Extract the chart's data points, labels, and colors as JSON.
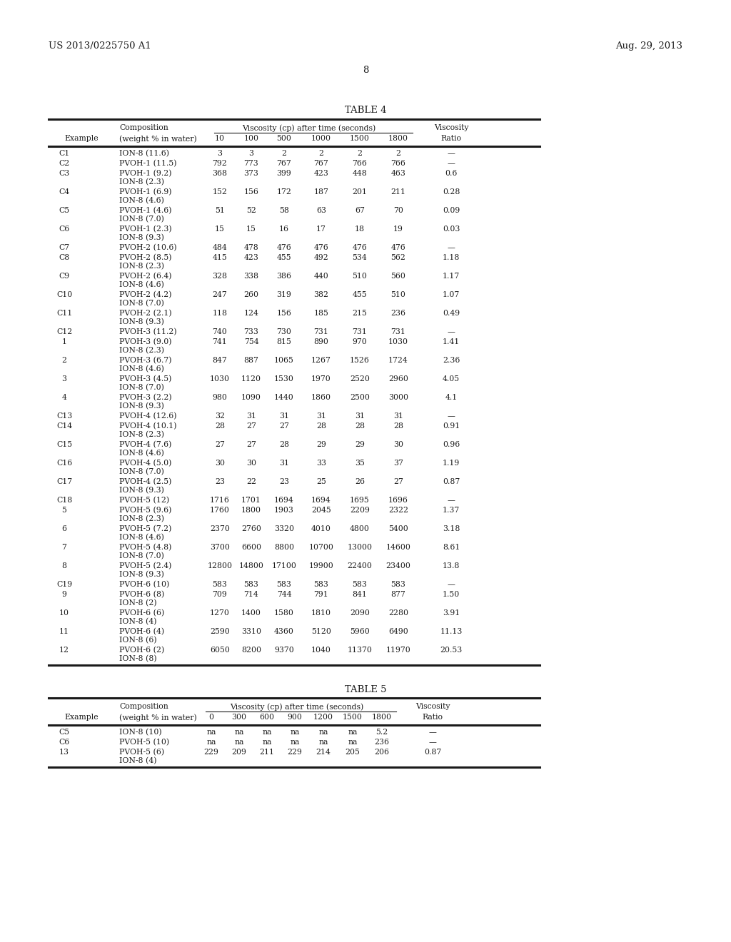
{
  "header_left": "US 2013/0225750 A1",
  "header_right": "Aug. 29, 2013",
  "page_number": "8",
  "table4_title": "TABLE 4",
  "table5_title": "TABLE 5",
  "table4_header1": "Composition",
  "table4_header2": "Viscosity (cp) after time (seconds)",
  "table4_header3": "Viscosity",
  "table4_col1": "Example",
  "table4_col2": "(weight % in water)",
  "table4_cols": [
    "10",
    "100",
    "500",
    "1000",
    "1500",
    "1800",
    "Ratio"
  ],
  "table4_rows": [
    {
      "example": "C1",
      "comp1": "ION-8 (11.6)",
      "comp2": "",
      "v10": "3",
      "v100": "3",
      "v500": "2",
      "v1000": "2",
      "v1500": "2",
      "v1800": "2",
      "ratio": "—"
    },
    {
      "example": "C2",
      "comp1": "PVOH-1 (11.5)",
      "comp2": "",
      "v10": "792",
      "v100": "773",
      "v500": "767",
      "v1000": "767",
      "v1500": "766",
      "v1800": "766",
      "ratio": "—"
    },
    {
      "example": "C3",
      "comp1": "PVOH-1 (9.2)",
      "comp2": "ION-8 (2.3)",
      "v10": "368",
      "v100": "373",
      "v500": "399",
      "v1000": "423",
      "v1500": "448",
      "v1800": "463",
      "ratio": "0.6"
    },
    {
      "example": "C4",
      "comp1": "PVOH-1 (6.9)",
      "comp2": "ION-8 (4.6)",
      "v10": "152",
      "v100": "156",
      "v500": "172",
      "v1000": "187",
      "v1500": "201",
      "v1800": "211",
      "ratio": "0.28"
    },
    {
      "example": "C5",
      "comp1": "PVOH-1 (4.6)",
      "comp2": "ION-8 (7.0)",
      "v10": "51",
      "v100": "52",
      "v500": "58",
      "v1000": "63",
      "v1500": "67",
      "v1800": "70",
      "ratio": "0.09"
    },
    {
      "example": "C6",
      "comp1": "PVOH-1 (2.3)",
      "comp2": "ION-8 (9.3)",
      "v10": "15",
      "v100": "15",
      "v500": "16",
      "v1000": "17",
      "v1500": "18",
      "v1800": "19",
      "ratio": "0.03"
    },
    {
      "example": "C7",
      "comp1": "PVOH-2 (10.6)",
      "comp2": "",
      "v10": "484",
      "v100": "478",
      "v500": "476",
      "v1000": "476",
      "v1500": "476",
      "v1800": "476",
      "ratio": "—"
    },
    {
      "example": "C8",
      "comp1": "PVOH-2 (8.5)",
      "comp2": "ION-8 (2.3)",
      "v10": "415",
      "v100": "423",
      "v500": "455",
      "v1000": "492",
      "v1500": "534",
      "v1800": "562",
      "ratio": "1.18"
    },
    {
      "example": "C9",
      "comp1": "PVOH-2 (6.4)",
      "comp2": "ION-8 (4.6)",
      "v10": "328",
      "v100": "338",
      "v500": "386",
      "v1000": "440",
      "v1500": "510",
      "v1800": "560",
      "ratio": "1.17"
    },
    {
      "example": "C10",
      "comp1": "PVOH-2 (4.2)",
      "comp2": "ION-8 (7.0)",
      "v10": "247",
      "v100": "260",
      "v500": "319",
      "v1000": "382",
      "v1500": "455",
      "v1800": "510",
      "ratio": "1.07"
    },
    {
      "example": "C11",
      "comp1": "PVOH-2 (2.1)",
      "comp2": "ION-8 (9.3)",
      "v10": "118",
      "v100": "124",
      "v500": "156",
      "v1000": "185",
      "v1500": "215",
      "v1800": "236",
      "ratio": "0.49"
    },
    {
      "example": "C12",
      "comp1": "PVOH-3 (11.2)",
      "comp2": "",
      "v10": "740",
      "v100": "733",
      "v500": "730",
      "v1000": "731",
      "v1500": "731",
      "v1800": "731",
      "ratio": "—"
    },
    {
      "example": "1",
      "comp1": "PVOH-3 (9.0)",
      "comp2": "ION-8 (2.3)",
      "v10": "741",
      "v100": "754",
      "v500": "815",
      "v1000": "890",
      "v1500": "970",
      "v1800": "1030",
      "ratio": "1.41"
    },
    {
      "example": "2",
      "comp1": "PVOH-3 (6.7)",
      "comp2": "ION-8 (4.6)",
      "v10": "847",
      "v100": "887",
      "v500": "1065",
      "v1000": "1267",
      "v1500": "1526",
      "v1800": "1724",
      "ratio": "2.36"
    },
    {
      "example": "3",
      "comp1": "PVOH-3 (4.5)",
      "comp2": "ION-8 (7.0)",
      "v10": "1030",
      "v100": "1120",
      "v500": "1530",
      "v1000": "1970",
      "v1500": "2520",
      "v1800": "2960",
      "ratio": "4.05"
    },
    {
      "example": "4",
      "comp1": "PVOH-3 (2.2)",
      "comp2": "ION-8 (9.3)",
      "v10": "980",
      "v100": "1090",
      "v500": "1440",
      "v1000": "1860",
      "v1500": "2500",
      "v1800": "3000",
      "ratio": "4.1"
    },
    {
      "example": "C13",
      "comp1": "PVOH-4 (12.6)",
      "comp2": "",
      "v10": "32",
      "v100": "31",
      "v500": "31",
      "v1000": "31",
      "v1500": "31",
      "v1800": "31",
      "ratio": "—"
    },
    {
      "example": "C14",
      "comp1": "PVOH-4 (10.1)",
      "comp2": "ION-8 (2.3)",
      "v10": "28",
      "v100": "27",
      "v500": "27",
      "v1000": "28",
      "v1500": "28",
      "v1800": "28",
      "ratio": "0.91"
    },
    {
      "example": "C15",
      "comp1": "PVOH-4 (7.6)",
      "comp2": "ION-8 (4.6)",
      "v10": "27",
      "v100": "27",
      "v500": "28",
      "v1000": "29",
      "v1500": "29",
      "v1800": "30",
      "ratio": "0.96"
    },
    {
      "example": "C16",
      "comp1": "PVOH-4 (5.0)",
      "comp2": "ION-8 (7.0)",
      "v10": "30",
      "v100": "30",
      "v500": "31",
      "v1000": "33",
      "v1500": "35",
      "v1800": "37",
      "ratio": "1.19"
    },
    {
      "example": "C17",
      "comp1": "PVOH-4 (2.5)",
      "comp2": "ION-8 (9.3)",
      "v10": "23",
      "v100": "22",
      "v500": "23",
      "v1000": "25",
      "v1500": "26",
      "v1800": "27",
      "ratio": "0.87"
    },
    {
      "example": "C18",
      "comp1": "PVOH-5 (12)",
      "comp2": "",
      "v10": "1716",
      "v100": "1701",
      "v500": "1694",
      "v1000": "1694",
      "v1500": "1695",
      "v1800": "1696",
      "ratio": "—"
    },
    {
      "example": "5",
      "comp1": "PVOH-5 (9.6)",
      "comp2": "ION-8 (2.3)",
      "v10": "1760",
      "v100": "1800",
      "v500": "1903",
      "v1000": "2045",
      "v1500": "2209",
      "v1800": "2322",
      "ratio": "1.37"
    },
    {
      "example": "6",
      "comp1": "PVOH-5 (7.2)",
      "comp2": "ION-8 (4.6)",
      "v10": "2370",
      "v100": "2760",
      "v500": "3320",
      "v1000": "4010",
      "v1500": "4800",
      "v1800": "5400",
      "ratio": "3.18"
    },
    {
      "example": "7",
      "comp1": "PVOH-5 (4.8)",
      "comp2": "ION-8 (7.0)",
      "v10": "3700",
      "v100": "6600",
      "v500": "8800",
      "v1000": "10700",
      "v1500": "13000",
      "v1800": "14600",
      "ratio": "8.61"
    },
    {
      "example": "8",
      "comp1": "PVOH-5 (2.4)",
      "comp2": "ION-8 (9.3)",
      "v10": "12800",
      "v100": "14800",
      "v500": "17100",
      "v1000": "19900",
      "v1500": "22400",
      "v1800": "23400",
      "ratio": "13.8"
    },
    {
      "example": "C19",
      "comp1": "PVOH-6 (10)",
      "comp2": "",
      "v10": "583",
      "v100": "583",
      "v500": "583",
      "v1000": "583",
      "v1500": "583",
      "v1800": "583",
      "ratio": "—"
    },
    {
      "example": "9",
      "comp1": "PVOH-6 (8)",
      "comp2": "ION-8 (2)",
      "v10": "709",
      "v100": "714",
      "v500": "744",
      "v1000": "791",
      "v1500": "841",
      "v1800": "877",
      "ratio": "1.50"
    },
    {
      "example": "10",
      "comp1": "PVOH-6 (6)",
      "comp2": "ION-8 (4)",
      "v10": "1270",
      "v100": "1400",
      "v500": "1580",
      "v1000": "1810",
      "v1500": "2090",
      "v1800": "2280",
      "ratio": "3.91"
    },
    {
      "example": "11",
      "comp1": "PVOH-6 (4)",
      "comp2": "ION-8 (6)",
      "v10": "2590",
      "v100": "3310",
      "v500": "4360",
      "v1000": "5120",
      "v1500": "5960",
      "v1800": "6490",
      "ratio": "11.13"
    },
    {
      "example": "12",
      "comp1": "PVOH-6 (2)",
      "comp2": "ION-8 (8)",
      "v10": "6050",
      "v100": "8200",
      "v500": "9370",
      "v1000": "1040",
      "v1500": "11370",
      "v1800": "11970",
      "ratio": "20.53"
    }
  ],
  "table5_header2": "Viscosity (cp) after time (seconds)",
  "table5_header3": "Viscosity",
  "table5_cols": [
    "0",
    "300",
    "600",
    "900",
    "1200",
    "1500",
    "1800",
    "Ratio"
  ],
  "table5_rows": [
    {
      "example": "C5",
      "comp1": "ION-8 (10)",
      "comp2": "",
      "v0": "na",
      "v300": "na",
      "v600": "na",
      "v900": "na",
      "v1200": "na",
      "v1500": "na",
      "v1800": "5.2",
      "ratio": "—"
    },
    {
      "example": "C6",
      "comp1": "PVOH-5 (10)",
      "comp2": "",
      "v0": "na",
      "v300": "na",
      "v600": "na",
      "v900": "na",
      "v1200": "na",
      "v1500": "na",
      "v1800": "236",
      "ratio": "—"
    },
    {
      "example": "13",
      "comp1": "PVOH-5 (6)",
      "comp2": "ION-8 (4)",
      "v0": "229",
      "v300": "209",
      "v600": "211",
      "v900": "229",
      "v1200": "214",
      "v1500": "205",
      "v1800": "206",
      "ratio": "0.87"
    }
  ]
}
